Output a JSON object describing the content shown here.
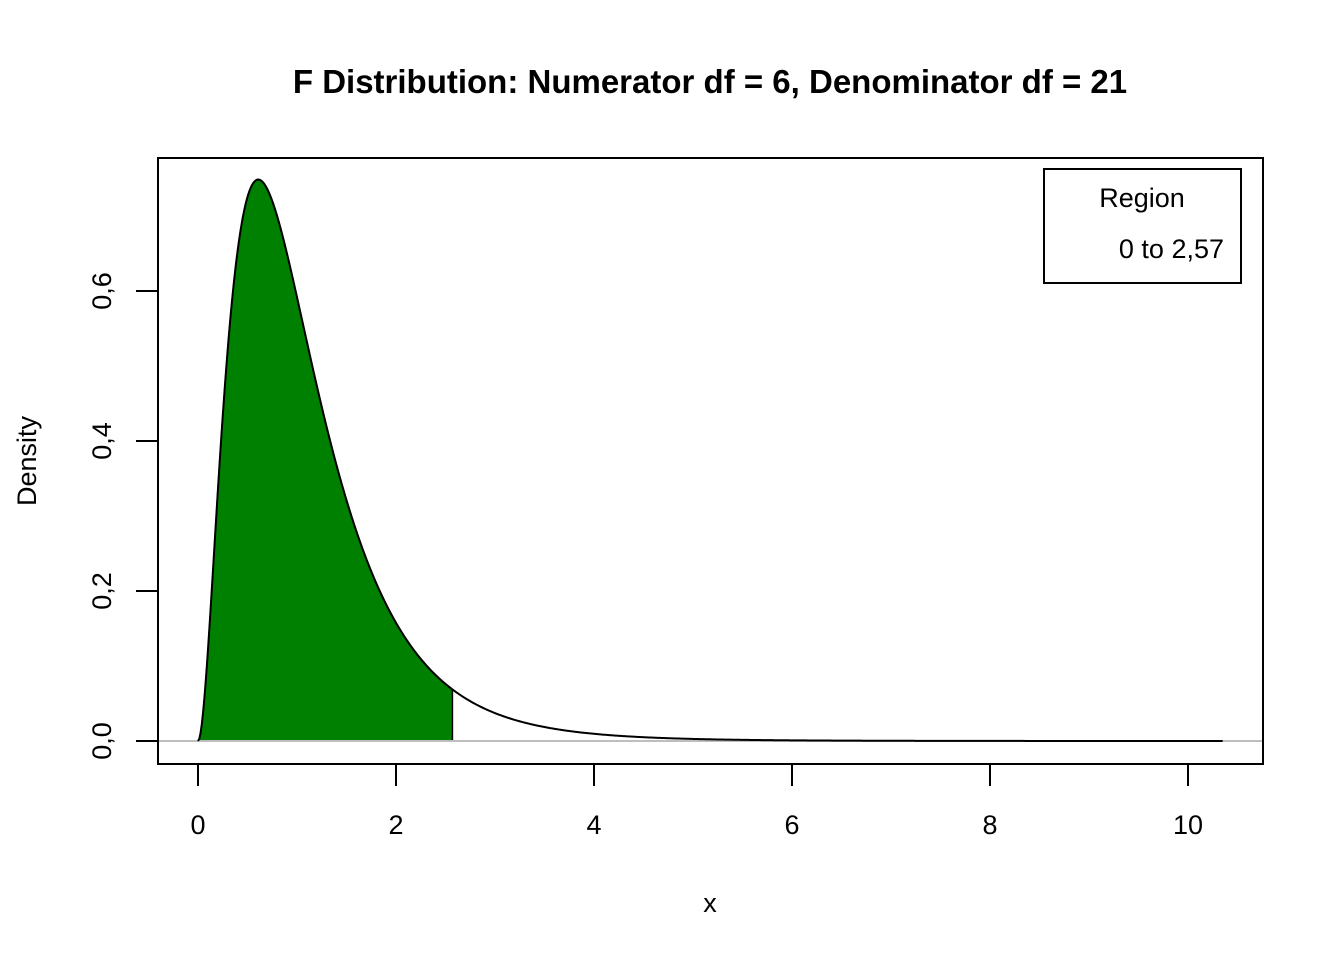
{
  "chart_data": {
    "type": "area",
    "title": "F Distribution:  Numerator df = 6, Denominator df = 21",
    "xlabel": "x",
    "ylabel": "Density",
    "distribution": {
      "family": "F",
      "df1": 6,
      "df2": 21
    },
    "xlim": [
      0,
      10.35
    ],
    "ylim": [
      0,
      0.75
    ],
    "x_ticks": [
      0,
      2,
      4,
      6,
      8,
      10
    ],
    "x_tick_labels": [
      "0",
      "2",
      "4",
      "6",
      "8",
      "10"
    ],
    "y_ticks": [
      0,
      0.2,
      0.4,
      0.6
    ],
    "y_tick_labels": [
      "0,0",
      "0,2",
      "0,4",
      "0,6"
    ],
    "shaded_region": {
      "from": 0,
      "to": 2.57,
      "color": "#008000"
    },
    "curve_color": "#000000",
    "baseline_color": "#bebebe",
    "legend": {
      "position": "top-right",
      "title": "Region",
      "entries": [
        "0 to 2,57"
      ]
    },
    "grid": false
  }
}
